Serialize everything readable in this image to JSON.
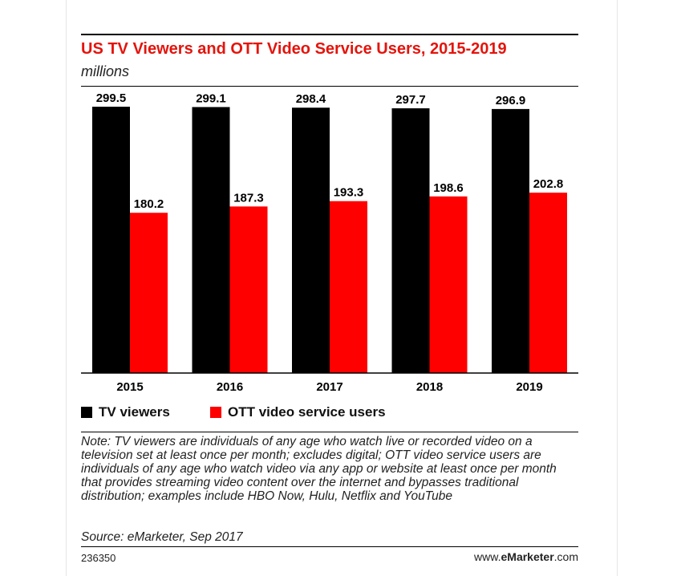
{
  "chart_data": {
    "type": "bar",
    "title": "US TV Viewers and OTT Video Service Users, 2015-2019",
    "subtitle": "millions",
    "categories": [
      "2015",
      "2016",
      "2017",
      "2018",
      "2019"
    ],
    "series": [
      {
        "name": "TV viewers",
        "color": "#000000",
        "values": [
          299.5,
          299.1,
          298.4,
          297.7,
          296.9
        ]
      },
      {
        "name": "OTT video service users",
        "color": "#ff0000",
        "values": [
          180.2,
          187.3,
          193.3,
          198.6,
          202.8
        ]
      }
    ],
    "ylim": [
      0,
      299.5
    ],
    "grid": false,
    "legend": "bottom-left"
  },
  "footer": {
    "note": "Note: TV viewers are individuals of any age who watch live or recorded video on a television set at least once per month; excludes digital; OTT video service users are individuals of any age who watch video via any app or website at least once per month that provides streaming video content over the internet and bypasses traditional distribution; examples include HBO Now, Hulu, Netflix and YouTube",
    "source": "Source: eMarketer, Sep 2017",
    "chart_id": "236350",
    "brand_prefix": "www.",
    "brand_name": "eMarketer",
    "brand_suffix": ".com"
  }
}
